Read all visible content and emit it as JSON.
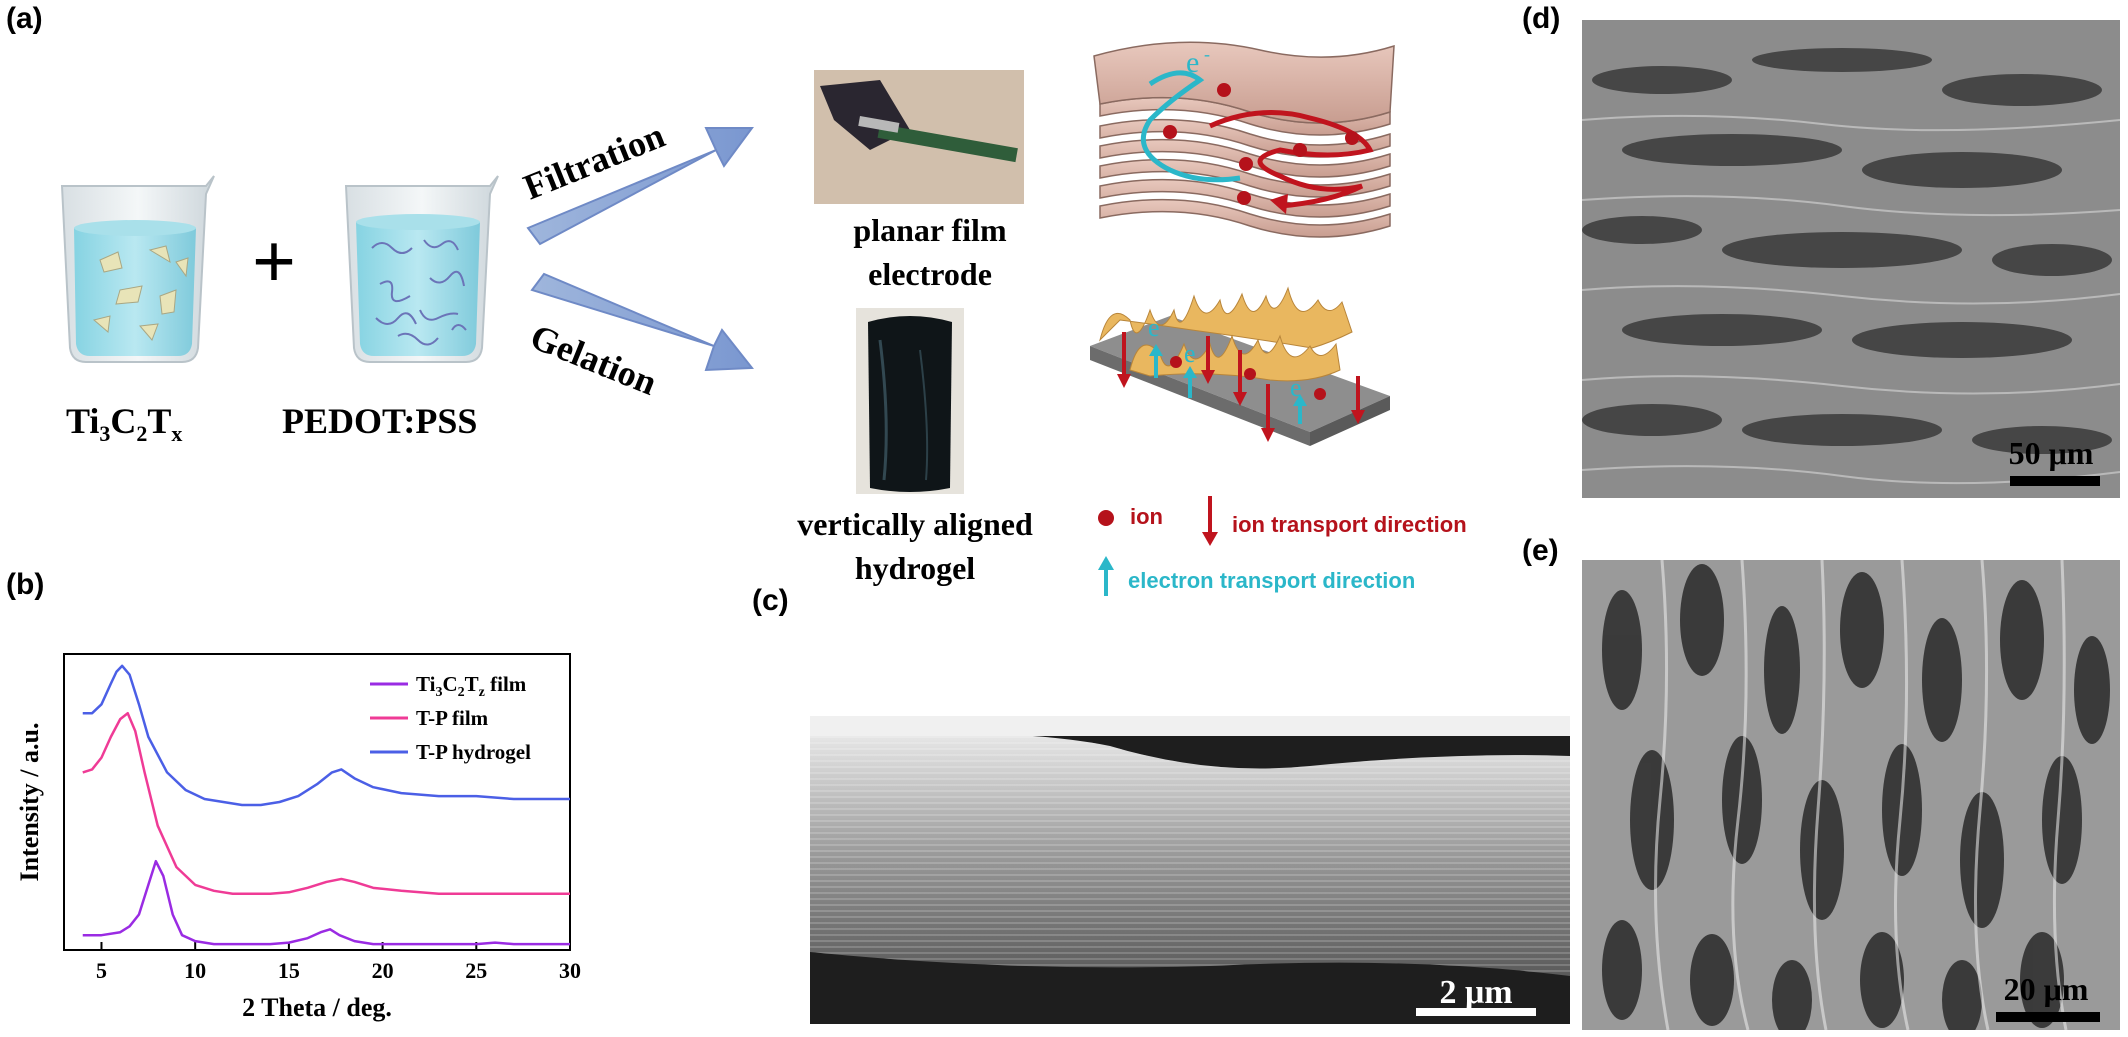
{
  "panels": {
    "a": "(a)",
    "b": "(b)",
    "c": "(c)",
    "d": "(d)",
    "e": "(e)"
  },
  "schematic": {
    "beaker1_label_main": "Ti",
    "beaker1_sub1": "3",
    "beaker1_mid": "C",
    "beaker1_sub2": "2",
    "beaker1_mid2": "T",
    "beaker1_sub3": "x",
    "plus": "+",
    "beaker2_label": "PEDOT:PSS",
    "arrow_top": "Filtration",
    "arrow_bottom": "Gelation",
    "film_caption_line1": "planar film",
    "film_caption_line2": "electrode",
    "hydrogel_caption_line1": "vertically aligned",
    "hydrogel_caption_line2": "hydrogel",
    "electron_symbol": "e",
    "electron_sup": "-"
  },
  "key": {
    "ion": "ion",
    "ion_transport": "ion transport direction",
    "electron_transport": "electron transport direction",
    "ion_color": "#b5121b",
    "electron_color": "#2bb7c9"
  },
  "chart_data": {
    "type": "line",
    "xlabel": "2 Theta / deg.",
    "ylabel": "Intensity / a.u.",
    "xlim": [
      3,
      30
    ],
    "xticks": [
      5,
      10,
      15,
      20,
      25,
      30
    ],
    "legend_position": "top-right",
    "series": [
      {
        "name": "Ti3C2Tz film",
        "name_parts": [
          "Ti",
          "3",
          "C",
          "2",
          "T",
          "z",
          " film"
        ],
        "color": "#9a2be3",
        "x": [
          4,
          5,
          6,
          6.5,
          7,
          7.5,
          7.9,
          8.3,
          8.8,
          9.3,
          10,
          11,
          12,
          13,
          14,
          15,
          16,
          16.7,
          17.2,
          17.7,
          18.5,
          19.5,
          21,
          23,
          25,
          26,
          27,
          28,
          30
        ],
        "y": [
          0.05,
          0.05,
          0.06,
          0.08,
          0.12,
          0.22,
          0.3,
          0.25,
          0.12,
          0.05,
          0.03,
          0.02,
          0.02,
          0.02,
          0.02,
          0.025,
          0.04,
          0.06,
          0.07,
          0.05,
          0.03,
          0.02,
          0.02,
          0.02,
          0.02,
          0.025,
          0.02,
          0.02,
          0.02
        ]
      },
      {
        "name": "T-P film",
        "color": "#ef3b96",
        "x": [
          4,
          4.5,
          5,
          5.5,
          6,
          6.4,
          6.8,
          7.3,
          8,
          9,
          10,
          11,
          12,
          13,
          14,
          15,
          16,
          17,
          17.8,
          18.5,
          19.5,
          21,
          23,
          25,
          27,
          30
        ],
        "y": [
          0.6,
          0.61,
          0.65,
          0.72,
          0.78,
          0.8,
          0.74,
          0.6,
          0.42,
          0.28,
          0.22,
          0.2,
          0.19,
          0.19,
          0.19,
          0.195,
          0.21,
          0.23,
          0.24,
          0.23,
          0.21,
          0.2,
          0.19,
          0.19,
          0.19,
          0.19
        ]
      },
      {
        "name": "T-P hydrogel",
        "color": "#4b5fe6",
        "x": [
          4,
          4.5,
          5,
          5.5,
          5.8,
          6.1,
          6.5,
          7,
          7.5,
          8.5,
          9.5,
          10.5,
          11.5,
          12.5,
          13.5,
          14.5,
          15.5,
          16.5,
          17.3,
          17.8,
          18.5,
          19.5,
          21,
          23,
          25,
          27,
          30
        ],
        "y": [
          0.8,
          0.8,
          0.83,
          0.9,
          0.94,
          0.96,
          0.93,
          0.83,
          0.72,
          0.6,
          0.54,
          0.51,
          0.5,
          0.49,
          0.49,
          0.5,
          0.52,
          0.56,
          0.6,
          0.61,
          0.58,
          0.55,
          0.53,
          0.52,
          0.52,
          0.51,
          0.51
        ]
      }
    ]
  },
  "sem": {
    "c_scale": "2 μm",
    "d_scale": "50 μm",
    "e_scale": "20 μm"
  }
}
